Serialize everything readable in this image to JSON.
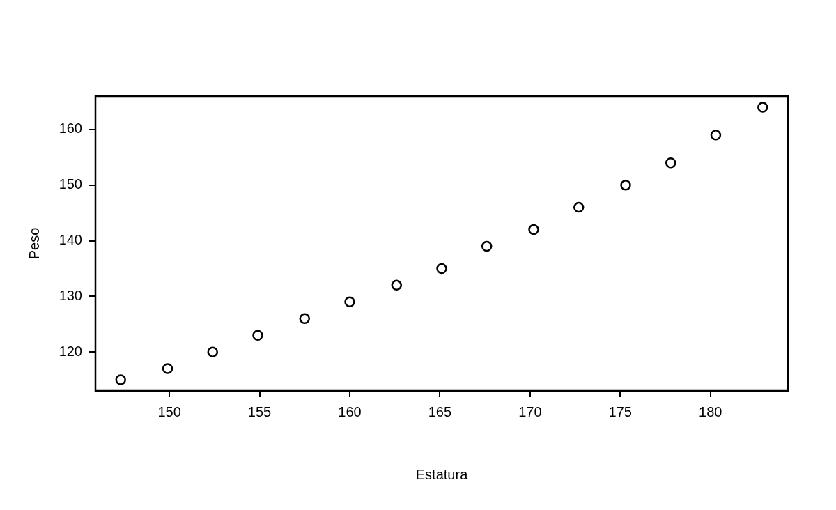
{
  "chart_data": {
    "type": "scatter",
    "xlabel": "Estatura",
    "ylabel": "Peso",
    "x": [
      147.3,
      149.9,
      152.4,
      154.9,
      157.5,
      160.0,
      162.6,
      165.1,
      167.6,
      170.2,
      172.7,
      175.3,
      177.8,
      180.3,
      182.9
    ],
    "values": [
      115,
      117,
      120,
      123,
      126,
      129,
      132,
      135,
      139,
      142,
      146,
      150,
      154,
      159,
      164
    ],
    "color": "#000000",
    "marker": "circle",
    "grid": false,
    "legend": false,
    "xlim": [
      145.9,
      184.3
    ],
    "xticks": [
      150,
      155,
      160,
      165,
      170,
      175,
      180
    ],
    "ylim": [
      113,
      166
    ],
    "yticks": [
      120,
      130,
      140,
      150,
      160
    ]
  }
}
